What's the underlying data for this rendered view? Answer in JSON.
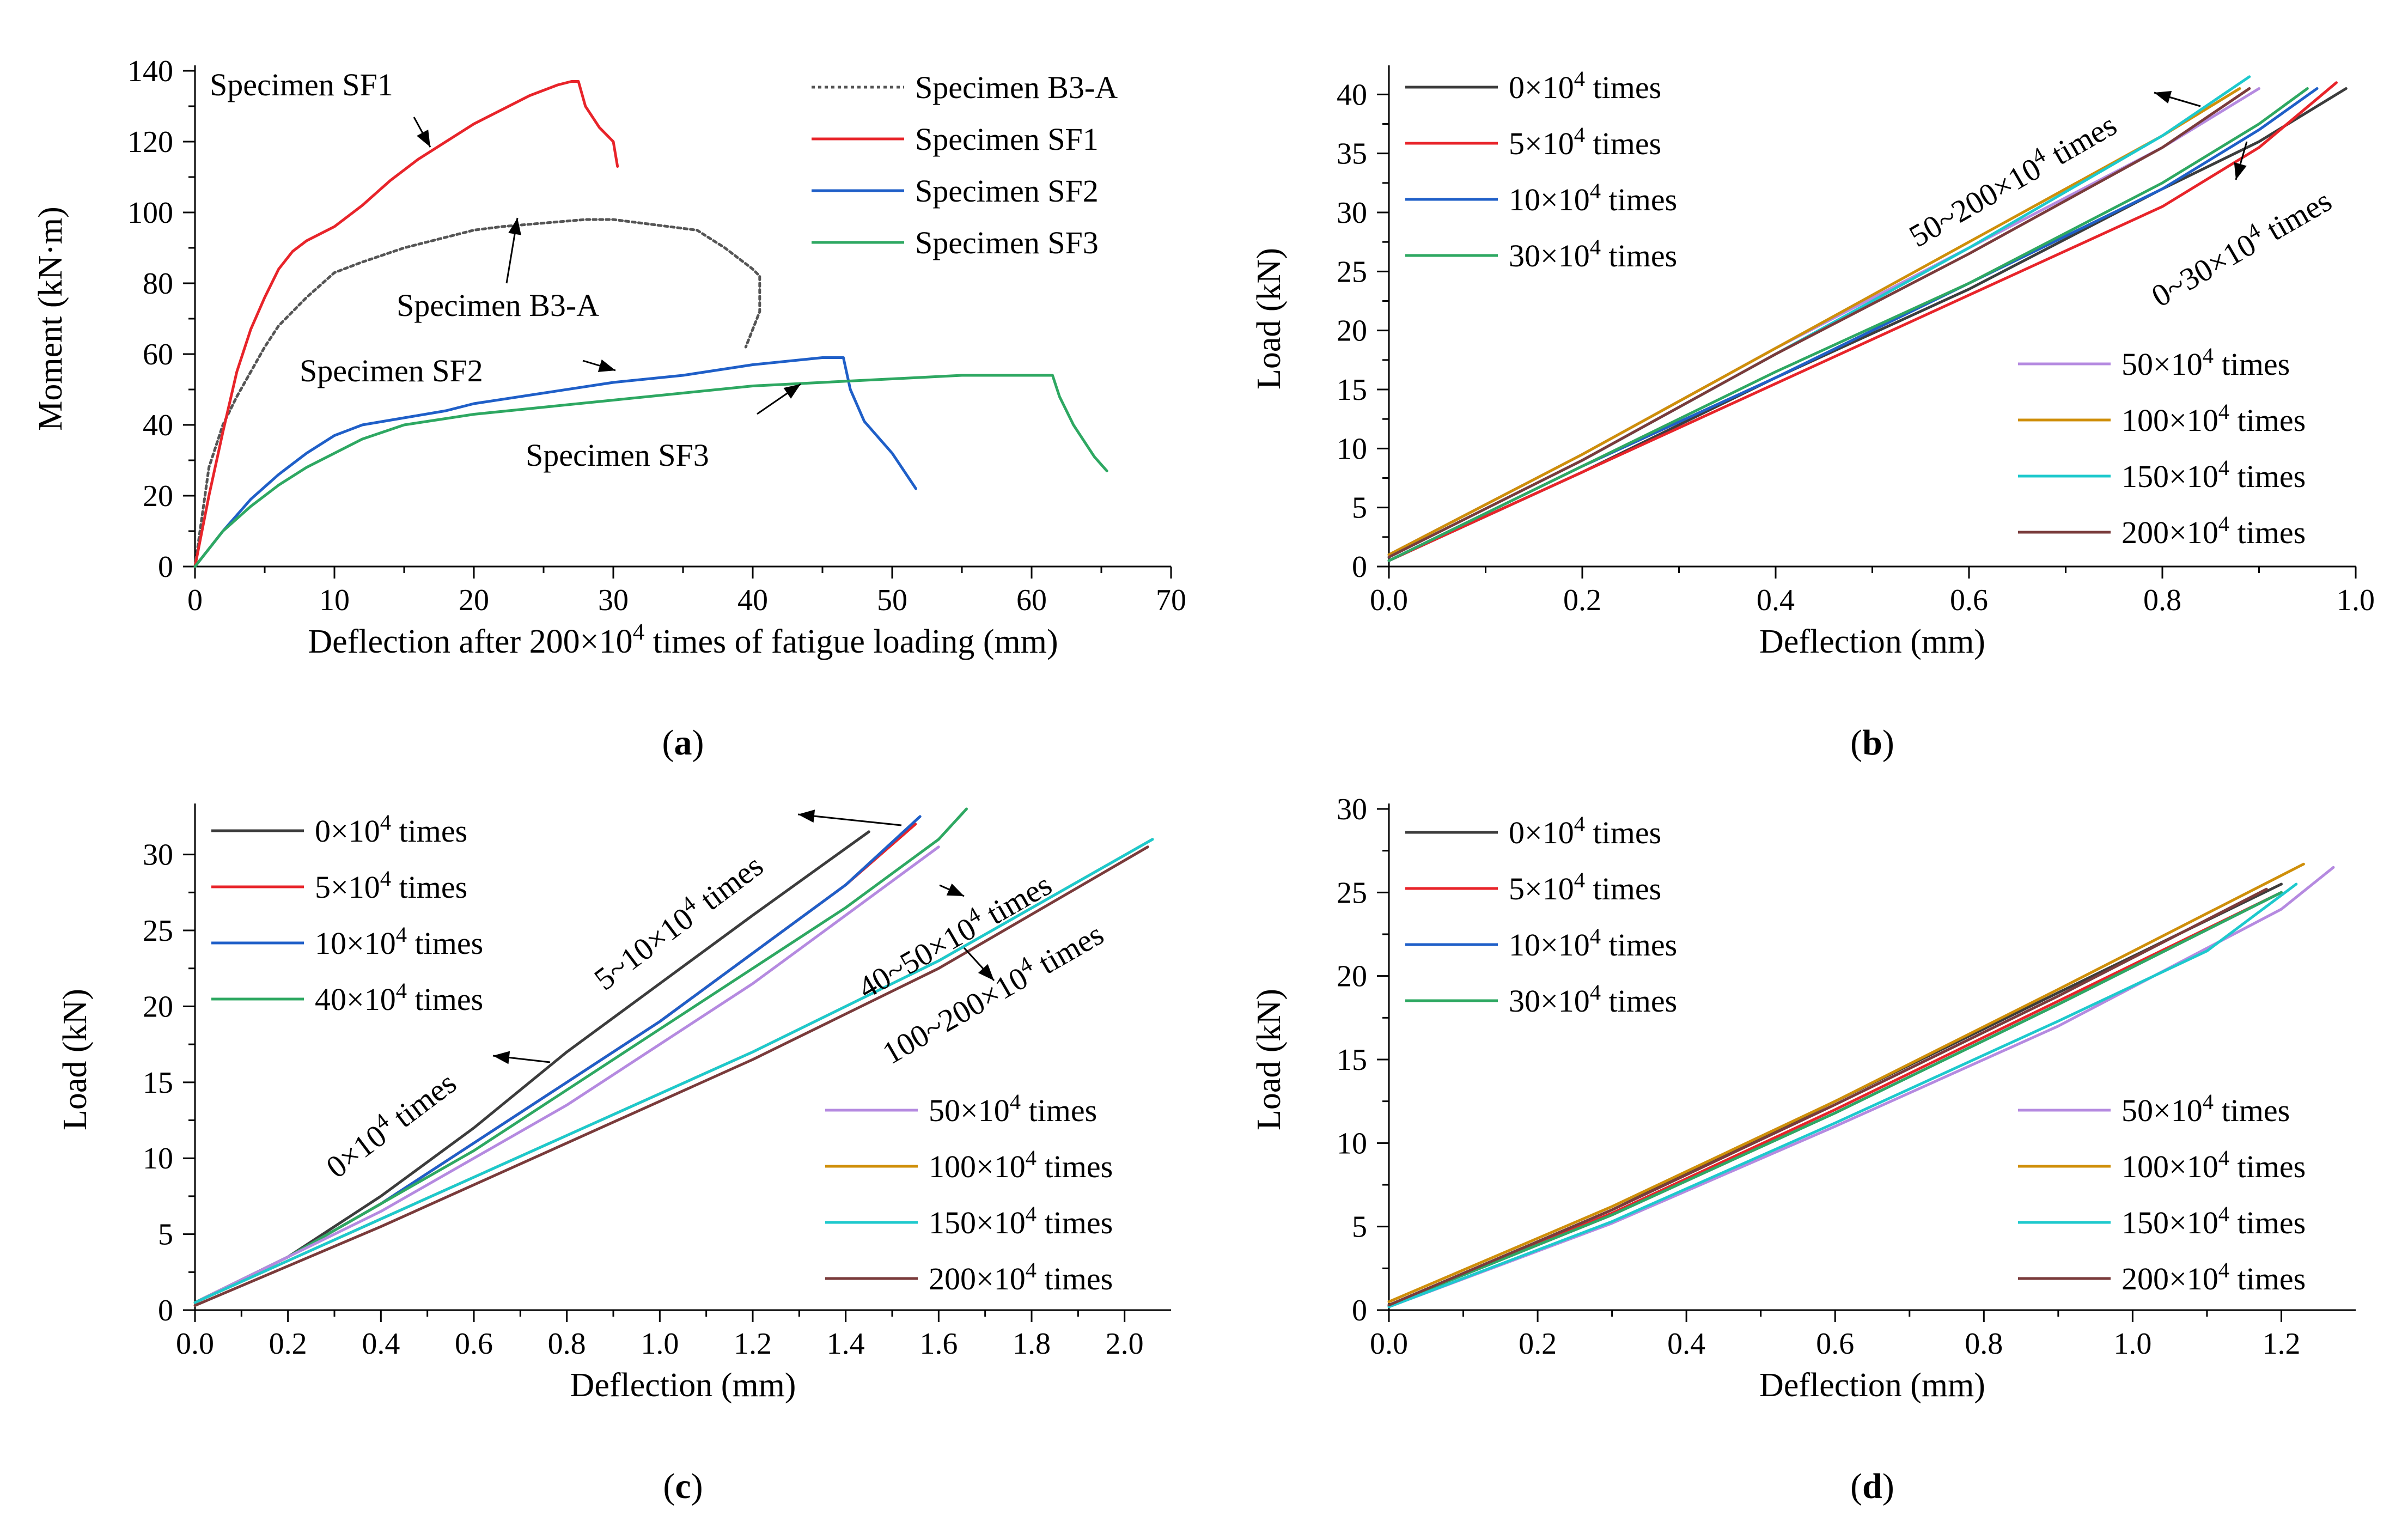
{
  "chart_data": [
    {
      "id": "a",
      "type": "line",
      "panel_label": "(a)",
      "xlabel": "Deflection after 200×10^4 times of fatigue loading (mm)",
      "xlabel_parts": [
        "Deflection after 200×10",
        "4",
        " times of fatigue loading (mm)"
      ],
      "ylabel": "Moment (kN·m)",
      "xlim": [
        0,
        70
      ],
      "ylim": [
        0,
        140
      ],
      "xticks": [
        0,
        10,
        20,
        30,
        40,
        50,
        60,
        70
      ],
      "yticks": [
        0,
        20,
        40,
        60,
        80,
        100,
        120,
        140
      ],
      "legend_position": "top-right",
      "series": [
        {
          "name": "Specimen B3-A",
          "color": "#555555",
          "dash": "dotted",
          "x": [
            0,
            1,
            2,
            3,
            4,
            5,
            6,
            8,
            10,
            12,
            15,
            18,
            20,
            22,
            25,
            28,
            30,
            32,
            34,
            36,
            38,
            40,
            40.5,
            40.5,
            39.5
          ],
          "y": [
            0,
            28,
            40,
            48,
            55,
            62,
            68,
            76,
            83,
            86,
            90,
            93,
            95,
            96,
            97,
            98,
            98,
            97,
            96,
            95,
            90,
            84,
            82,
            72,
            62
          ]
        },
        {
          "name": "Specimen SF1",
          "color": "#e8242a",
          "dash": "solid",
          "x": [
            0,
            1,
            2,
            3,
            4,
            5,
            6,
            7,
            8,
            10,
            12,
            14,
            16,
            18,
            20,
            22,
            24,
            26,
            27,
            27.5,
            28,
            29,
            30,
            30.3
          ],
          "y": [
            0,
            20,
            38,
            55,
            67,
            76,
            84,
            89,
            92,
            96,
            102,
            109,
            115,
            120,
            125,
            129,
            133,
            136,
            137,
            137,
            130,
            124,
            120,
            113
          ]
        },
        {
          "name": "Specimen SF2",
          "color": "#1f5fc8",
          "dash": "solid",
          "x": [
            0,
            2,
            4,
            6,
            8,
            10,
            12,
            15,
            18,
            20,
            25,
            30,
            35,
            40,
            45,
            46.5,
            47,
            48,
            50,
            51.7
          ],
          "y": [
            0,
            10,
            19,
            26,
            32,
            37,
            40,
            42,
            44,
            46,
            49,
            52,
            54,
            57,
            59,
            59,
            50,
            41,
            32,
            22
          ]
        },
        {
          "name": "Specimen SF3",
          "color": "#2ea862",
          "dash": "solid",
          "x": [
            0,
            2,
            4,
            6,
            8,
            10,
            12,
            15,
            20,
            25,
            30,
            35,
            40,
            45,
            50,
            55,
            60,
            61.5,
            62,
            63,
            64.5,
            65.4
          ],
          "y": [
            0,
            10,
            17,
            23,
            28,
            32,
            36,
            40,
            43,
            45,
            47,
            49,
            51,
            52,
            53,
            54,
            54,
            54,
            48,
            40,
            31,
            27
          ]
        }
      ],
      "annotations": [
        "Specimen SF1",
        "Specimen B3-A",
        "Specimen SF2",
        "Specimen SF3"
      ]
    },
    {
      "id": "b",
      "type": "line",
      "panel_label": "(b)",
      "xlabel": "Deflection (mm)",
      "ylabel": "Load (kN)",
      "xlim": [
        0,
        1.0
      ],
      "ylim": [
        0,
        42
      ],
      "xticks": [
        0.0,
        0.2,
        0.4,
        0.6,
        0.8,
        1.0
      ],
      "xtick_labels": [
        "0.0",
        "0.2",
        "0.4",
        "0.6",
        "0.8",
        "1.0"
      ],
      "yticks": [
        0,
        5,
        10,
        15,
        20,
        25,
        30,
        35,
        40
      ],
      "legend_groups": [
        "top-left",
        "bottom-right"
      ],
      "series": [
        {
          "name": "0×10^4 times",
          "color": "#3c3c3c",
          "group": 0,
          "x": [
            0,
            0.2,
            0.4,
            0.6,
            0.8,
            0.9,
            0.99
          ],
          "y": [
            0.5,
            8,
            16,
            23.5,
            32,
            36,
            40.5
          ]
        },
        {
          "name": "5×10^4 times",
          "color": "#e8242a",
          "group": 0,
          "x": [
            0,
            0.2,
            0.4,
            0.6,
            0.8,
            0.9,
            0.98
          ],
          "y": [
            0.5,
            8,
            15.5,
            23,
            30.5,
            35.5,
            41
          ]
        },
        {
          "name": "10×10^4 times",
          "color": "#1f5fc8",
          "group": 0,
          "x": [
            0,
            0.2,
            0.4,
            0.6,
            0.8,
            0.9,
            0.96
          ],
          "y": [
            0.5,
            8.5,
            16,
            24,
            32,
            37,
            40.5
          ]
        },
        {
          "name": "30×10^4 times",
          "color": "#2ea862",
          "group": 0,
          "x": [
            0,
            0.2,
            0.4,
            0.6,
            0.8,
            0.9,
            0.95
          ],
          "y": [
            0.5,
            8.5,
            16.5,
            24,
            32.5,
            37.5,
            40.5
          ]
        },
        {
          "name": "50×10^4 times",
          "color": "#b58ae0",
          "group": 1,
          "x": [
            0,
            0.2,
            0.4,
            0.6,
            0.8,
            0.9
          ],
          "y": [
            1,
            9.5,
            18.5,
            27,
            35.5,
            40.5
          ]
        },
        {
          "name": "100×10^4 times",
          "color": "#cf8f0a",
          "group": 1,
          "x": [
            0,
            0.2,
            0.4,
            0.6,
            0.8,
            0.88
          ],
          "y": [
            1,
            9.5,
            18.5,
            27.5,
            36.5,
            40.5
          ]
        },
        {
          "name": "150×10^4 times",
          "color": "#1dc9cd",
          "group": 1,
          "x": [
            0,
            0.2,
            0.4,
            0.6,
            0.8,
            0.89
          ],
          "y": [
            0.8,
            9,
            18,
            27,
            36.5,
            41.5
          ]
        },
        {
          "name": "200×10^4 times",
          "color": "#7a3b3b",
          "group": 1,
          "x": [
            0,
            0.2,
            0.4,
            0.6,
            0.8,
            0.89
          ],
          "y": [
            0.8,
            9,
            18,
            26.5,
            35.5,
            40.5
          ]
        }
      ],
      "annotations": [
        "50~200×10^4 times",
        "0~30×10^4 times"
      ]
    },
    {
      "id": "c",
      "type": "line",
      "panel_label": "(c)",
      "xlabel": "Deflection (mm)",
      "ylabel": "Load (kN)",
      "xlim": [
        0,
        2.1
      ],
      "ylim": [
        0,
        33
      ],
      "xticks": [
        0.0,
        0.2,
        0.4,
        0.6,
        0.8,
        1.0,
        1.2,
        1.4,
        1.6,
        1.8,
        2.0
      ],
      "xtick_labels": [
        "0.0",
        "0.2",
        "0.4",
        "0.6",
        "0.8",
        "1.0",
        "1.2",
        "1.4",
        "1.6",
        "1.8",
        "2.0"
      ],
      "yticks": [
        0,
        5,
        10,
        15,
        20,
        25,
        30
      ],
      "legend_groups": [
        "top-left",
        "bottom-right"
      ],
      "series": [
        {
          "name": "0×10^4 times",
          "color": "#3c3c3c",
          "group": 0,
          "x": [
            0,
            0.2,
            0.4,
            0.6,
            0.8,
            1.0,
            1.2,
            1.45
          ],
          "y": [
            0.5,
            3.5,
            7.5,
            12,
            17,
            21.5,
            26,
            31.5
          ]
        },
        {
          "name": "5×10^4 times",
          "color": "#e8242a",
          "group": 0,
          "x": [
            0,
            0.2,
            0.4,
            0.6,
            0.8,
            1.0,
            1.2,
            1.4,
            1.55
          ],
          "y": [
            0.5,
            3.5,
            7,
            11,
            15,
            19,
            23.5,
            28,
            32
          ]
        },
        {
          "name": "10×10^4 times",
          "color": "#1f5fc8",
          "group": 0,
          "x": [
            0,
            0.2,
            0.4,
            0.6,
            0.8,
            1.0,
            1.2,
            1.4,
            1.56
          ],
          "y": [
            0.5,
            3.5,
            7,
            11,
            15,
            19,
            23.5,
            28,
            32.5
          ]
        },
        {
          "name": "40×10^4 times",
          "color": "#2ea862",
          "group": 0,
          "x": [
            0,
            0.2,
            0.4,
            0.6,
            0.8,
            1.0,
            1.2,
            1.4,
            1.6,
            1.66
          ],
          "y": [
            0.5,
            3.5,
            7,
            10.5,
            14.5,
            18.5,
            22.5,
            26.5,
            31,
            33
          ]
        },
        {
          "name": "50×10^4 times",
          "color": "#b58ae0",
          "group": 1,
          "x": [
            0,
            0.2,
            0.4,
            0.6,
            0.8,
            1.0,
            1.2,
            1.4,
            1.6
          ],
          "y": [
            0.5,
            3.5,
            6.5,
            10,
            13.5,
            17.5,
            21.5,
            26,
            30.5
          ]
        },
        {
          "name": "100×10^4 times",
          "color": "#cf8f0a",
          "group": 1,
          "x": [
            0,
            0.4,
            0.8,
            1.2,
            1.6,
            2.06
          ],
          "y": [
            0.5,
            6,
            11.5,
            17,
            23,
            31
          ]
        },
        {
          "name": "150×10^4 times",
          "color": "#1dc9cd",
          "group": 1,
          "x": [
            0,
            0.4,
            0.8,
            1.2,
            1.6,
            2.06
          ],
          "y": [
            0.5,
            6,
            11.5,
            17,
            23,
            31
          ]
        },
        {
          "name": "200×10^4 times",
          "color": "#7a3b3b",
          "group": 1,
          "x": [
            0,
            0.4,
            0.8,
            1.2,
            1.6,
            2.05
          ],
          "y": [
            0.3,
            5.5,
            11,
            16.5,
            22.5,
            30.5
          ]
        }
      ],
      "annotations": [
        "5~10×10^4 times",
        "0×10^4 times",
        "40~50×10^4 times",
        "100~200×10^4 times"
      ]
    },
    {
      "id": "d",
      "type": "line",
      "panel_label": "(d)",
      "xlabel": "Deflection (mm)",
      "ylabel": "Load (kN)",
      "xlim": [
        0,
        1.3
      ],
      "ylim": [
        0,
        30
      ],
      "xticks": [
        0.0,
        0.2,
        0.4,
        0.6,
        0.8,
        1.0,
        1.2
      ],
      "xtick_labels": [
        "0.0",
        "0.2",
        "0.4",
        "0.6",
        "0.8",
        "1.0",
        "1.2"
      ],
      "yticks": [
        0,
        5,
        10,
        15,
        20,
        25,
        30
      ],
      "legend_groups": [
        "top-left",
        "bottom-right"
      ],
      "series": [
        {
          "name": "0×10^4 times",
          "color": "#3c3c3c",
          "group": 0,
          "x": [
            0,
            0.3,
            0.6,
            0.9,
            1.2
          ],
          "y": [
            0.3,
            6,
            12.5,
            19,
            25.5
          ]
        },
        {
          "name": "5×10^4 times",
          "color": "#e8242a",
          "group": 0,
          "x": [
            0,
            0.3,
            0.6,
            0.9,
            1.2
          ],
          "y": [
            0.3,
            5.8,
            12,
            18.5,
            25
          ]
        },
        {
          "name": "10×10^4 times",
          "color": "#1f5fc8",
          "group": 0,
          "x": [
            0,
            0.3,
            0.6,
            0.9,
            1.2
          ],
          "y": [
            0.3,
            5.7,
            11.8,
            18.3,
            25
          ]
        },
        {
          "name": "30×10^4 times",
          "color": "#2ea862",
          "group": 0,
          "x": [
            0,
            0.3,
            0.6,
            0.9,
            1.2
          ],
          "y": [
            0.3,
            5.7,
            11.8,
            18.3,
            25
          ]
        },
        {
          "name": "50×10^4 times",
          "color": "#b58ae0",
          "group": 1,
          "x": [
            0,
            0.3,
            0.6,
            0.9,
            1.2,
            1.27
          ],
          "y": [
            0.2,
            5.2,
            11,
            17,
            24,
            26.5
          ]
        },
        {
          "name": "100×10^4 times",
          "color": "#cf8f0a",
          "group": 1,
          "x": [
            0,
            0.3,
            0.6,
            0.9,
            1.23
          ],
          "y": [
            0.5,
            6.2,
            12.5,
            19.2,
            26.7
          ]
        },
        {
          "name": "150×10^4 times",
          "color": "#1dc9cd",
          "group": 1,
          "x": [
            0,
            0.3,
            0.6,
            0.9,
            1.1,
            1.22
          ],
          "y": [
            0.2,
            5.3,
            11.2,
            17.3,
            21.5,
            25.5
          ]
        },
        {
          "name": "200×10^4 times",
          "color": "#7a3b3b",
          "group": 1,
          "x": [
            0,
            0.3,
            0.6,
            0.9,
            1.18
          ],
          "y": [
            0.3,
            6,
            12.3,
            18.8,
            25.2
          ]
        }
      ],
      "annotations": []
    }
  ]
}
